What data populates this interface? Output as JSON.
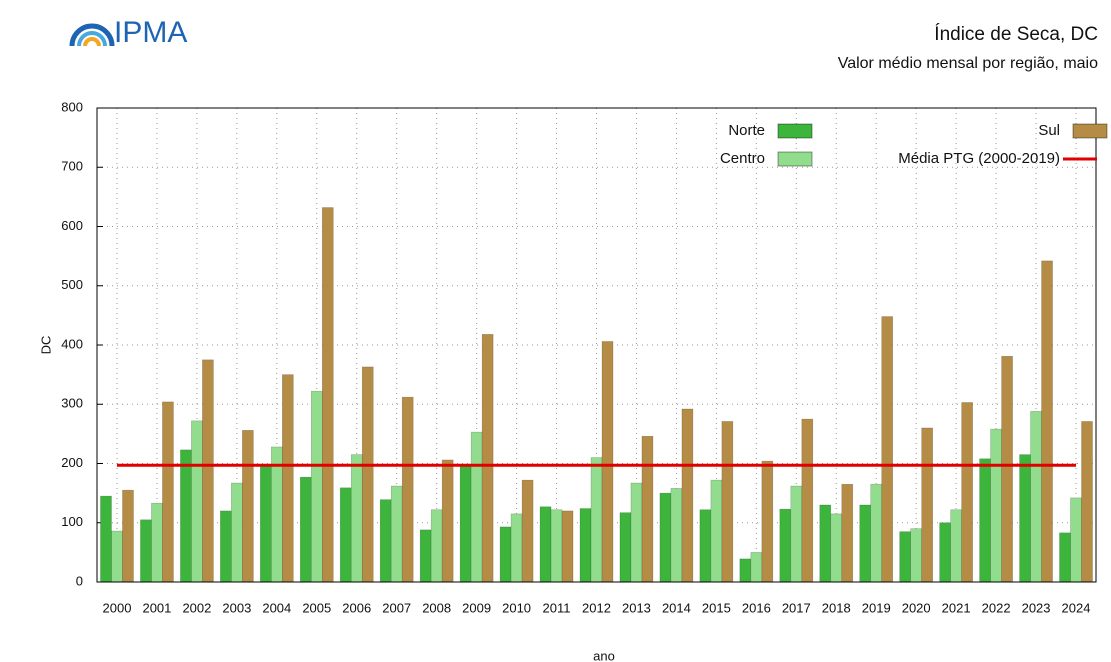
{
  "logo_text": "IPMA",
  "chart_data": {
    "type": "bar",
    "title": "Índice de Seca, DC",
    "subtitle": "Valor médio mensal por região, maio",
    "x_label": "ano",
    "y_label": "DC",
    "categories": [
      "2000",
      "2001",
      "2002",
      "2003",
      "2004",
      "2005",
      "2006",
      "2007",
      "2008",
      "2009",
      "2010",
      "2011",
      "2012",
      "2013",
      "2014",
      "2015",
      "2016",
      "2017",
      "2018",
      "2019",
      "2020",
      "2021",
      "2022",
      "2023",
      "2024"
    ],
    "series": [
      {
        "name": "Norte",
        "color": "#3db53d",
        "values": [
          145,
          105,
          223,
          120,
          197,
          177,
          159,
          139,
          88,
          196,
          93,
          127,
          124,
          117,
          150,
          122,
          39,
          123,
          130,
          130,
          85,
          100,
          208,
          215,
          83
        ]
      },
      {
        "name": "Centro",
        "color": "#92dc8e",
        "values": [
          86,
          133,
          272,
          167,
          228,
          322,
          215,
          162,
          122,
          253,
          115,
          122,
          210,
          167,
          158,
          172,
          50,
          162,
          115,
          165,
          90,
          122,
          258,
          288,
          142
        ]
      },
      {
        "name": "Sul",
        "color": "#b58c45",
        "values": [
          155,
          304,
          375,
          256,
          350,
          632,
          363,
          312,
          206,
          418,
          172,
          120,
          406,
          246,
          292,
          271,
          204,
          275,
          165,
          448,
          260,
          303,
          381,
          542,
          271
        ]
      }
    ],
    "mean": {
      "name": "Média PTG (2000-2019)",
      "color": "#e00000",
      "value": 197
    },
    "ylim": [
      0,
      800
    ],
    "yticks": [
      0,
      100,
      200,
      300,
      400,
      500,
      600,
      700,
      800
    ],
    "grid": true
  }
}
